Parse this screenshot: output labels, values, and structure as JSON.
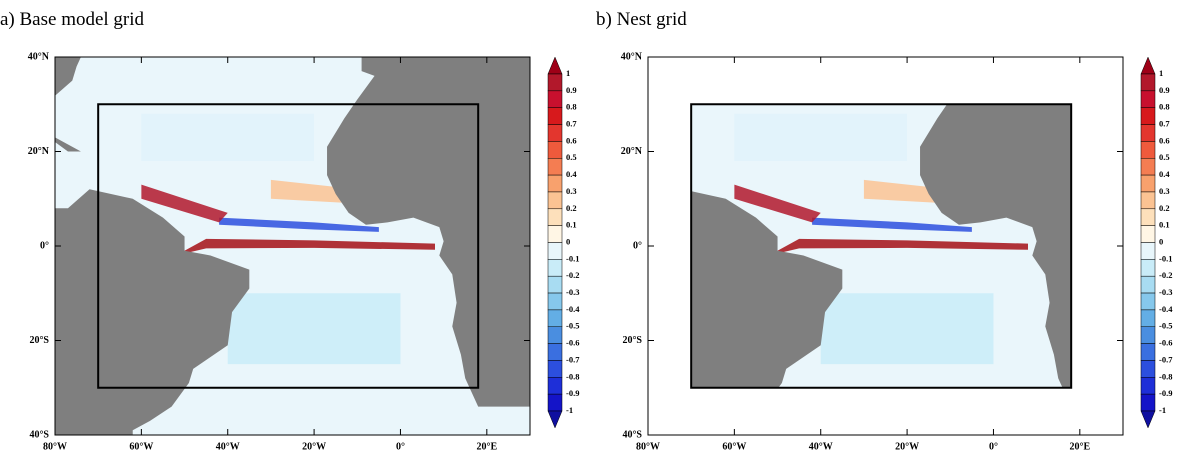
{
  "panels": [
    {
      "title": "a) Base model grid",
      "xlim": [
        -80,
        30
      ],
      "ylim": [
        -40,
        40
      ],
      "xticks": [
        {
          "value": -80,
          "label": "80°W"
        },
        {
          "value": -60,
          "label": "60°W"
        },
        {
          "value": -40,
          "label": "40°W"
        },
        {
          "value": -20,
          "label": "20°W"
        },
        {
          "value": 0,
          "label": "0°"
        },
        {
          "value": 20,
          "label": "20°E"
        }
      ],
      "yticks": [
        {
          "value": 40,
          "label": "40°N"
        },
        {
          "value": 20,
          "label": "20°N"
        },
        {
          "value": 0,
          "label": "0°"
        },
        {
          "value": -20,
          "label": "20°S"
        },
        {
          "value": -40,
          "label": "40°S"
        }
      ]
    },
    {
      "title": "b) Nest grid",
      "xlim": [
        -80,
        30
      ],
      "ylim": [
        -40,
        40
      ],
      "xticks": [
        {
          "value": -80,
          "label": "80°W"
        },
        {
          "value": -60,
          "label": "60°W"
        },
        {
          "value": -40,
          "label": "40°W"
        },
        {
          "value": -20,
          "label": "20°W"
        },
        {
          "value": 0,
          "label": "0°"
        },
        {
          "value": 20,
          "label": "20°E"
        }
      ],
      "yticks": [
        {
          "value": 40,
          "label": "40°N"
        },
        {
          "value": 20,
          "label": "20°N"
        },
        {
          "value": 0,
          "label": "0°"
        },
        {
          "value": -20,
          "label": "20°S"
        },
        {
          "value": -40,
          "label": "40°S"
        }
      ]
    }
  ],
  "colorbar": {
    "levels": [
      1,
      0.9,
      0.8,
      0.7,
      0.6,
      0.5,
      0.4,
      0.3,
      0.2,
      0.1,
      0,
      -0.1,
      -0.2,
      -0.3,
      -0.4,
      -0.5,
      -0.6,
      -0.7,
      -0.8,
      -0.9,
      -1
    ],
    "colors": [
      "#9e0017",
      "#b2182b",
      "#c8102e",
      "#d7191c",
      "#e3362e",
      "#ef5a3c",
      "#f47d52",
      "#f8a16d",
      "#fbc393",
      "#fde0bb",
      "#fff6e5",
      "#e8f6fb",
      "#c9ecf8",
      "#a8dcf2",
      "#86c8ec",
      "#63aee5",
      "#4a8ee0",
      "#3a6fe0",
      "#2c4fde",
      "#1e2fd8",
      "#1414c8",
      "#1010a0"
    ]
  }
}
